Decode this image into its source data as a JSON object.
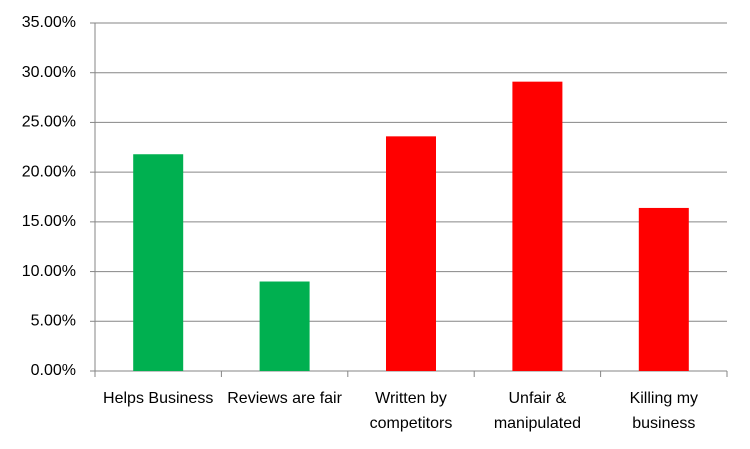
{
  "chart_data": {
    "type": "bar",
    "categories": [
      "Helps Business",
      "Reviews are fair",
      "Written by competitors",
      "Unfair & manipulated",
      "Killing my business"
    ],
    "values": [
      21.8,
      9.0,
      23.6,
      29.1,
      16.4
    ],
    "colors": [
      "#00b050",
      "#00b050",
      "#ff0000",
      "#ff0000",
      "#ff0000"
    ],
    "ylim": [
      0,
      35
    ],
    "yticks": [
      {
        "value": 0,
        "label": "0.00%"
      },
      {
        "value": 5,
        "label": "5.00%"
      },
      {
        "value": 10,
        "label": "10.00%"
      },
      {
        "value": 15,
        "label": "15.00%"
      },
      {
        "value": 20,
        "label": "20.00%"
      },
      {
        "value": 25,
        "label": "25.00%"
      },
      {
        "value": 30,
        "label": "30.00%"
      },
      {
        "value": 35,
        "label": "35.00%"
      }
    ],
    "grid": true
  }
}
